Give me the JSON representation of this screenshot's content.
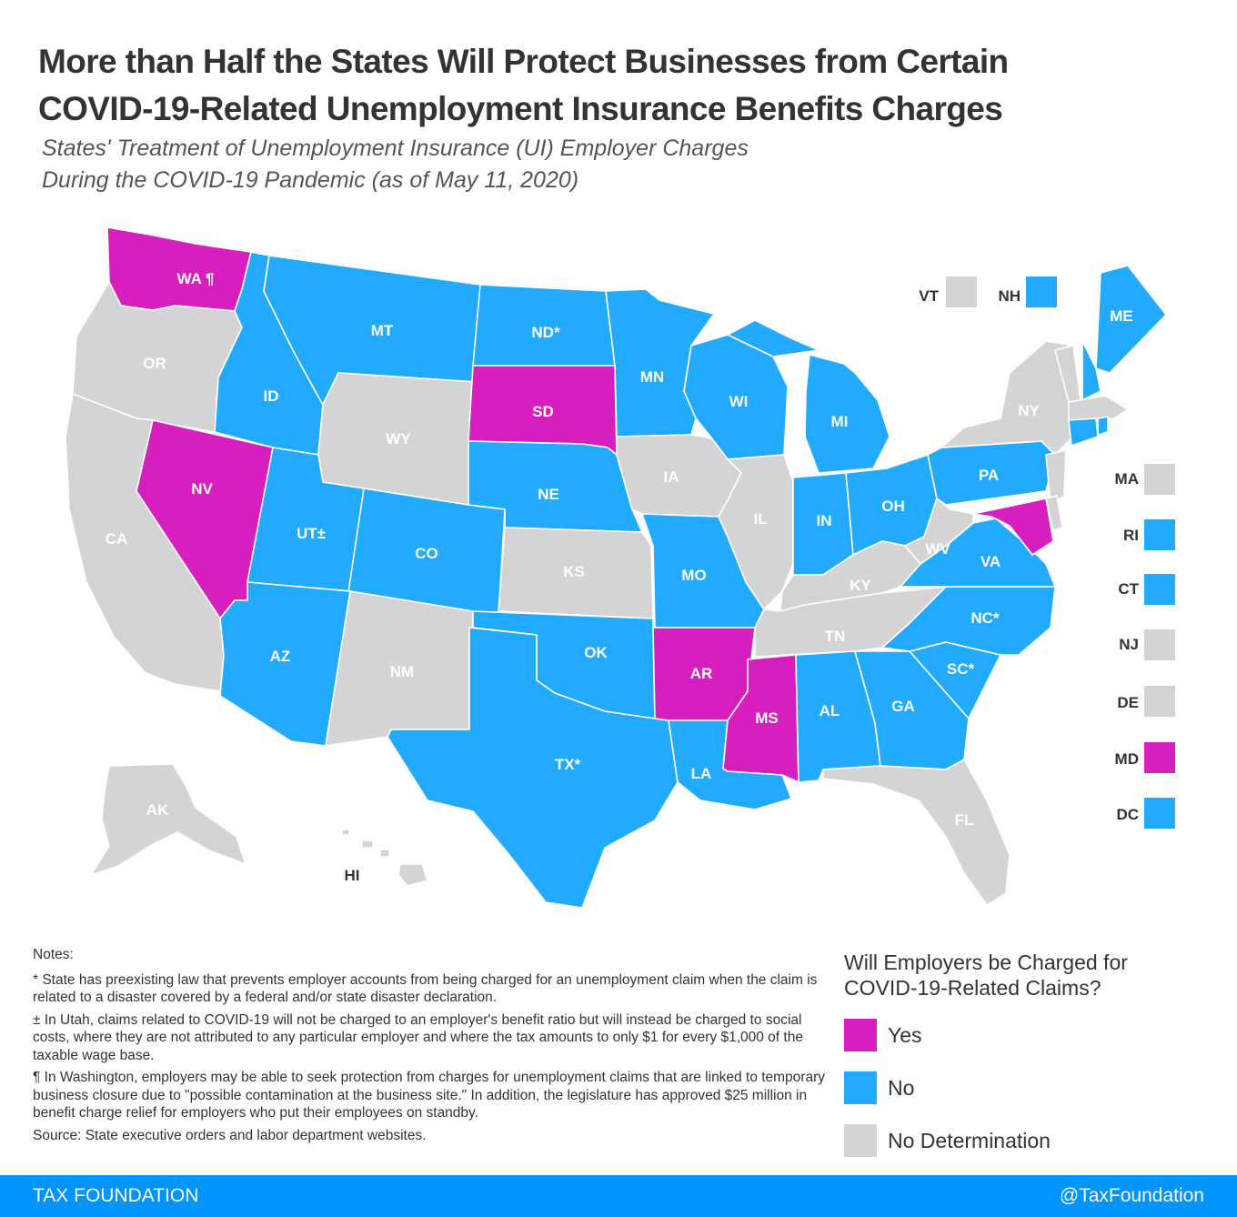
{
  "title_line1": "More than Half the States Will Protect Businesses from Certain",
  "title_line2": "COVID-19-Related Unemployment Insurance Benefits Charges",
  "subtitle_line1": "States' Treatment of Unemployment Insurance (UI) Employer Charges",
  "subtitle_line2": "During the COVID-19 Pandemic (as of May 11, 2020)",
  "colors": {
    "yes": "#d71ebf",
    "no": "#22aaff",
    "none": "#d4d4d6",
    "footer": "#0094ff"
  },
  "states": [
    {
      "abbr": "WA",
      "label": "WA ¶",
      "status": "yes"
    },
    {
      "abbr": "OR",
      "label": "OR",
      "status": "none"
    },
    {
      "abbr": "CA",
      "label": "CA",
      "status": "none"
    },
    {
      "abbr": "NV",
      "label": "NV",
      "status": "yes"
    },
    {
      "abbr": "ID",
      "label": "ID",
      "status": "no"
    },
    {
      "abbr": "MT",
      "label": "MT",
      "status": "no"
    },
    {
      "abbr": "WY",
      "label": "WY",
      "status": "none"
    },
    {
      "abbr": "UT",
      "label": "UT±",
      "status": "no"
    },
    {
      "abbr": "AZ",
      "label": "AZ",
      "status": "no"
    },
    {
      "abbr": "CO",
      "label": "CO",
      "status": "no"
    },
    {
      "abbr": "NM",
      "label": "NM",
      "status": "none"
    },
    {
      "abbr": "ND",
      "label": "ND*",
      "status": "no"
    },
    {
      "abbr": "SD",
      "label": "SD",
      "status": "yes"
    },
    {
      "abbr": "NE",
      "label": "NE",
      "status": "no"
    },
    {
      "abbr": "KS",
      "label": "KS",
      "status": "none"
    },
    {
      "abbr": "OK",
      "label": "OK",
      "status": "no"
    },
    {
      "abbr": "TX",
      "label": "TX*",
      "status": "no"
    },
    {
      "abbr": "MN",
      "label": "MN",
      "status": "no"
    },
    {
      "abbr": "IA",
      "label": "IA",
      "status": "none"
    },
    {
      "abbr": "MO",
      "label": "MO",
      "status": "no"
    },
    {
      "abbr": "AR",
      "label": "AR",
      "status": "yes"
    },
    {
      "abbr": "LA",
      "label": "LA",
      "status": "no"
    },
    {
      "abbr": "WI",
      "label": "WI",
      "status": "no"
    },
    {
      "abbr": "IL",
      "label": "IL",
      "status": "none"
    },
    {
      "abbr": "MI",
      "label": "MI",
      "status": "no"
    },
    {
      "abbr": "IN",
      "label": "IN",
      "status": "no"
    },
    {
      "abbr": "OH",
      "label": "OH",
      "status": "no"
    },
    {
      "abbr": "KY",
      "label": "KY",
      "status": "none"
    },
    {
      "abbr": "TN",
      "label": "TN",
      "status": "none"
    },
    {
      "abbr": "MS",
      "label": "MS",
      "status": "yes"
    },
    {
      "abbr": "AL",
      "label": "AL",
      "status": "no"
    },
    {
      "abbr": "GA",
      "label": "GA",
      "status": "no"
    },
    {
      "abbr": "FL",
      "label": "FL",
      "status": "none"
    },
    {
      "abbr": "SC",
      "label": "SC*",
      "status": "no"
    },
    {
      "abbr": "NC",
      "label": "NC*",
      "status": "no"
    },
    {
      "abbr": "VA",
      "label": "VA",
      "status": "no"
    },
    {
      "abbr": "WV",
      "label": "WV",
      "status": "none"
    },
    {
      "abbr": "PA",
      "label": "PA",
      "status": "no"
    },
    {
      "abbr": "NY",
      "label": "NY",
      "status": "none"
    },
    {
      "abbr": "ME",
      "label": "ME",
      "status": "no"
    },
    {
      "abbr": "AK",
      "label": "AK",
      "status": "none"
    },
    {
      "abbr": "HI",
      "label": "HI",
      "status": "none"
    }
  ],
  "callouts": [
    {
      "abbr": "VT",
      "label": "VT",
      "status": "none"
    },
    {
      "abbr": "NH",
      "label": "NH",
      "status": "no"
    },
    {
      "abbr": "MA",
      "label": "MA",
      "status": "none"
    },
    {
      "abbr": "RI",
      "label": "RI",
      "status": "no"
    },
    {
      "abbr": "CT",
      "label": "CT",
      "status": "no"
    },
    {
      "abbr": "NJ",
      "label": "NJ",
      "status": "none"
    },
    {
      "abbr": "DE",
      "label": "DE",
      "status": "none"
    },
    {
      "abbr": "MD",
      "label": "MD",
      "status": "yes"
    },
    {
      "abbr": "DC",
      "label": "DC",
      "status": "no"
    }
  ],
  "notes": {
    "heading": "Notes:",
    "star": "* State has preexisting law that prevents employer accounts from being charged for an unemployment claim when the claim is related to a disaster covered by a federal and/or state disaster declaration.",
    "plusminus": "± In Utah, claims related to COVID-19 will not be charged to an employer's benefit ratio but will instead be charged to social costs, where they are not attributed to any particular employer and where the tax amounts to only $1 for every $1,000 of the taxable wage base.",
    "pilcrow": "¶ In Washington, employers may be able to seek protection from charges for unemployment claims that are linked to temporary business closure due to \"possible contamination at the business site.\" In addition, the legislature has approved $25 million in benefit charge relief for employers who put their employees on standby.",
    "source": "Source: State executive orders and labor department websites."
  },
  "legend": {
    "title_line1": "Will Employers be Charged for",
    "title_line2": "COVID-19-Related Claims?",
    "items": [
      {
        "label": "Yes",
        "status": "yes"
      },
      {
        "label": "No",
        "status": "no"
      },
      {
        "label": "No Determination",
        "status": "none"
      }
    ]
  },
  "footer": {
    "left": "TAX FOUNDATION",
    "right": "@TaxFoundation"
  }
}
